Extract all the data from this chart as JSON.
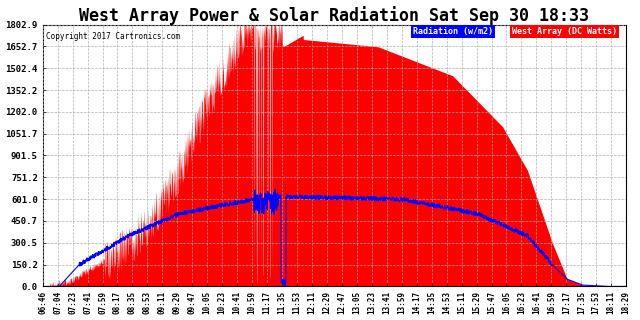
{
  "title": "West Array Power & Solar Radiation Sat Sep 30 18:33",
  "copyright": "Copyright 2017 Cartronics.com",
  "legend_labels": [
    "Radiation (w/m2)",
    "West Array (DC Watts)"
  ],
  "y_ticks": [
    0.0,
    150.2,
    300.5,
    450.7,
    601.0,
    751.2,
    901.5,
    1051.7,
    1202.0,
    1352.2,
    1502.4,
    1652.7,
    1802.9
  ],
  "y_max": 1802.9,
  "y_min": 0.0,
  "background_color": "#ffffff",
  "grid_color": "#aaaaaa",
  "fill_color": "#ff0000",
  "line_color": "#0000ff",
  "title_fontsize": 12,
  "time_labels": [
    "06:46",
    "07:04",
    "07:23",
    "07:41",
    "07:59",
    "08:17",
    "08:35",
    "08:53",
    "09:11",
    "09:29",
    "09:47",
    "10:05",
    "10:23",
    "10:41",
    "10:59",
    "11:17",
    "11:35",
    "11:53",
    "12:11",
    "12:29",
    "12:47",
    "13:05",
    "13:23",
    "13:41",
    "13:59",
    "14:17",
    "14:35",
    "14:53",
    "15:11",
    "15:29",
    "15:47",
    "16:05",
    "16:23",
    "16:41",
    "16:59",
    "17:17",
    "17:35",
    "17:53",
    "18:11",
    "18:29"
  ]
}
